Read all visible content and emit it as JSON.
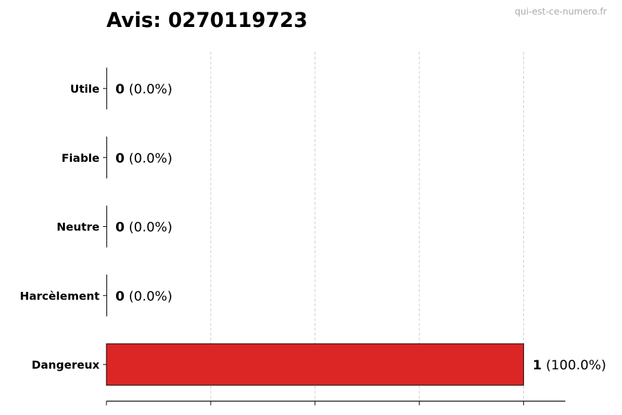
{
  "header": {
    "title": "Avis: 0270119723",
    "watermark": "qui-est-ce-numero.fr"
  },
  "chart_data": {
    "type": "bar",
    "orientation": "horizontal",
    "title": "Avis: 0270119723",
    "categories": [
      "Utile",
      "Fiable",
      "Neutre",
      "Harcèlement",
      "Dangereux"
    ],
    "values": [
      0,
      0,
      0,
      0,
      1
    ],
    "percent_labels": [
      "(0.0%)",
      "(0.0%)",
      "(0.0%)",
      "(0.0%)",
      "(100.0%)"
    ],
    "xlim": [
      0,
      1.1
    ],
    "xticks": [
      0,
      0.25,
      0.5,
      0.75,
      1
    ],
    "grid": "x, dashed",
    "colors": {
      "Dangereux": "#dc2626",
      "edge": "#000000",
      "grid": "#cccccc"
    },
    "xlabel": "",
    "ylabel": ""
  }
}
